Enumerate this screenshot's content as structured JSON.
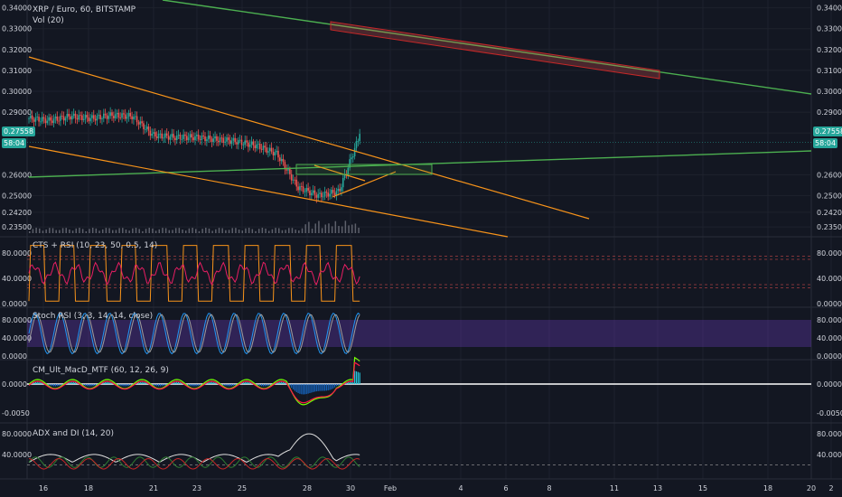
{
  "price_pane": {
    "title": "XRP / Euro, 60, BITSTAMP",
    "vol_label": "Vol (20)",
    "y_ticks": [
      "0.34000",
      "0.33000",
      "0.32000",
      "0.31000",
      "0.30000",
      "0.29000",
      "0.28000",
      "0.26000",
      "0.25000",
      "0.24200",
      "0.23500"
    ],
    "last_price_tag": "0.27558",
    "countdown_tag": "58:04"
  },
  "cts_pane": {
    "title": "CTS + RSI (10, 23, 50, 0.5, 14)",
    "y_ticks": [
      "80.0000",
      "40.0000",
      "0.0000"
    ]
  },
  "stoch_pane": {
    "title": "Stoch RSI (3, 3, 14, 14, close)",
    "y_ticks": [
      "80.0000",
      "40.0000",
      "0.0000"
    ]
  },
  "macd_pane": {
    "title": "CM_Ult_MacD_MTF (60, 12, 26, 9)",
    "y_ticks": [
      "0.0000",
      "-0.0050"
    ]
  },
  "adx_pane": {
    "title": "ADX and DI (14, 20)",
    "y_ticks": [
      "80.0000",
      "40.0000"
    ]
  },
  "x_axis": {
    "labels": [
      "16",
      "18",
      "21",
      "23",
      "25",
      "28",
      "30",
      "Feb",
      "4",
      "6",
      "8",
      "11",
      "13",
      "15",
      "18",
      "20",
      "2"
    ]
  },
  "colors": {
    "background": "#131722",
    "up": "#26a69a",
    "down": "#ef5350",
    "trend_orange": "#f7931a",
    "trend_green": "#4caf50",
    "stoch_band": "#4a2a7a"
  },
  "chart_data": {
    "type": "candlestick",
    "pair": "XRP / Euro",
    "interval": "60",
    "exchange": "BITSTAMP",
    "last_price": 0.27558,
    "y_range": [
      0.232,
      0.342
    ],
    "approx_close_path": [
      {
        "x": "15",
        "y": 0.287
      },
      {
        "x": "16",
        "y": 0.286
      },
      {
        "x": "17",
        "y": 0.288
      },
      {
        "x": "18",
        "y": 0.287
      },
      {
        "x": "19",
        "y": 0.2885
      },
      {
        "x": "20",
        "y": 0.288
      },
      {
        "x": "21",
        "y": 0.279
      },
      {
        "x": "22",
        "y": 0.278
      },
      {
        "x": "23",
        "y": 0.278
      },
      {
        "x": "24",
        "y": 0.277
      },
      {
        "x": "25",
        "y": 0.276
      },
      {
        "x": "26",
        "y": 0.274
      },
      {
        "x": "27",
        "y": 0.27
      },
      {
        "x": "28",
        "y": 0.254
      },
      {
        "x": "29",
        "y": 0.25
      },
      {
        "x": "30",
        "y": 0.252
      },
      {
        "x": "31",
        "y": 0.279
      }
    ]
  }
}
